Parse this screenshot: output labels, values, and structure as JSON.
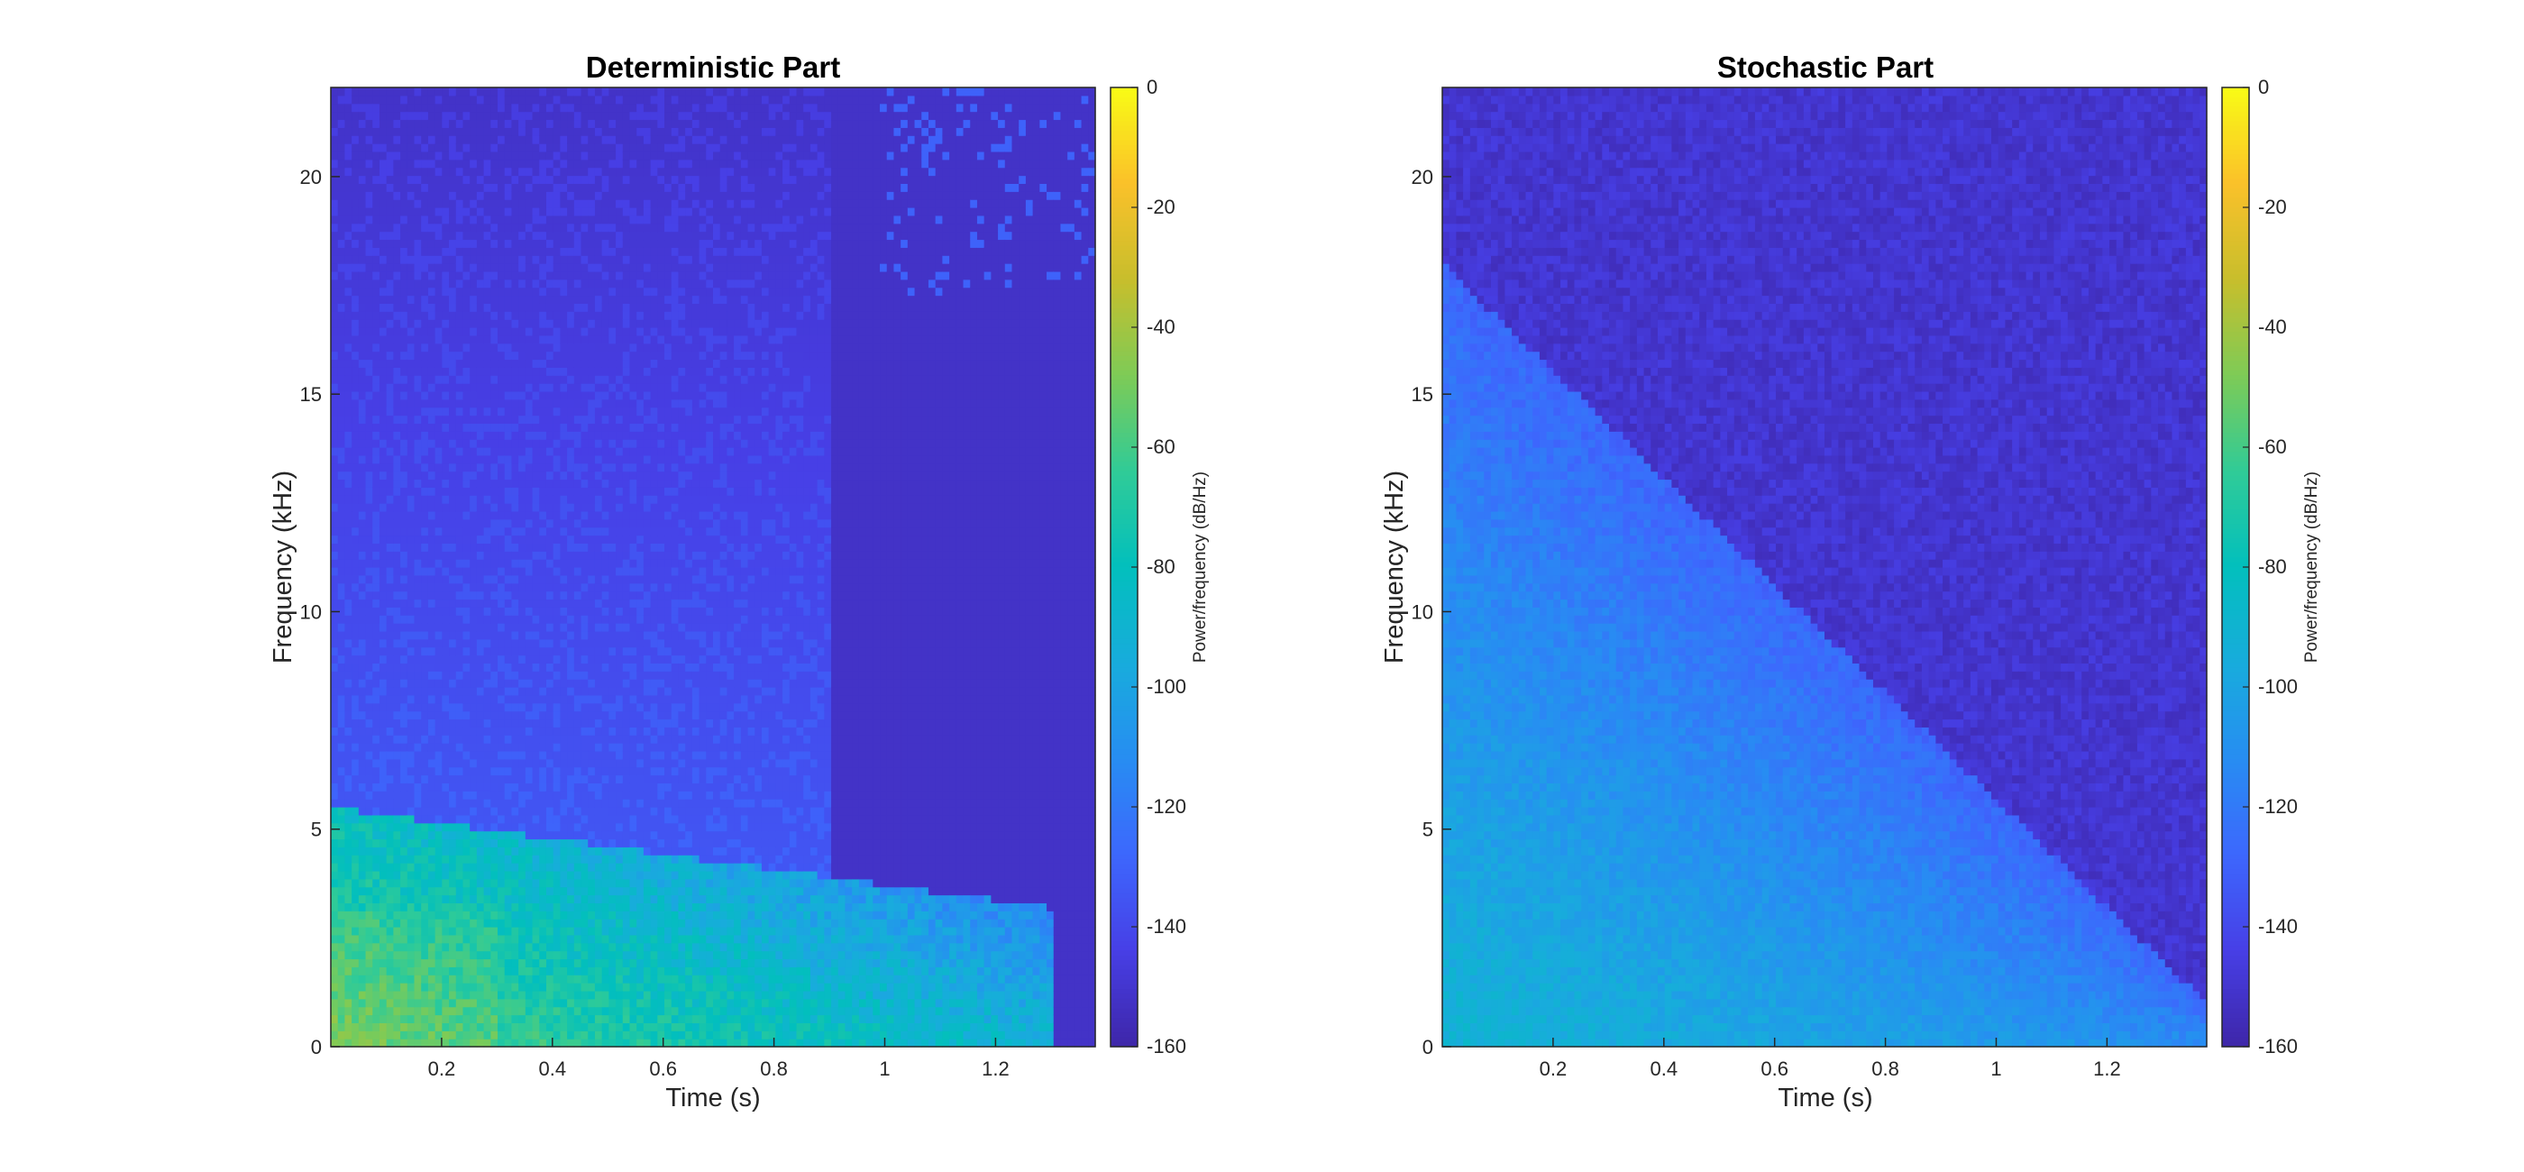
{
  "chart_data": [
    {
      "type": "heatmap",
      "title": "Deterministic Part",
      "xlabel": "Time (s)",
      "ylabel": "Frequency (kHz)",
      "xlim": [
        0.0,
        1.38
      ],
      "ylim": [
        0,
        22.05
      ],
      "x_ticks": [
        0.2,
        0.4,
        0.6,
        0.8,
        1,
        1.2
      ],
      "y_ticks": [
        0,
        5,
        10,
        15,
        20
      ],
      "colorbar": {
        "label": "Power/frequency (dB/Hz)",
        "range": [
          -160,
          0
        ],
        "ticks": [
          0,
          -20,
          -40,
          -60,
          -80,
          -100,
          -120,
          -140,
          -160
        ],
        "colormap": "parula"
      },
      "grid": false,
      "description_values": {
        "background_db": -152,
        "low_band_peak_db": -55,
        "low_band_top_khz_at_start": 5.5,
        "low_band_end_time_s": 1.3,
        "harmonic_band_top_khz": 3.2
      }
    },
    {
      "type": "heatmap",
      "title": "Stochastic Part",
      "xlabel": "Time (s)",
      "ylabel": "Frequency (kHz)",
      "xlim": [
        0.0,
        1.38
      ],
      "ylim": [
        0,
        22.05
      ],
      "x_ticks": [
        0.2,
        0.4,
        0.6,
        0.8,
        1,
        1.2
      ],
      "y_ticks": [
        0,
        5,
        10,
        15,
        20
      ],
      "colorbar": {
        "label": "Power/frequency (dB/Hz)",
        "range": [
          -160,
          0
        ],
        "ticks": [
          0,
          -20,
          -40,
          -60,
          -80,
          -100,
          -120,
          -140,
          -160
        ],
        "colormap": "parula"
      },
      "grid": false,
      "description_values": {
        "background_db": -150,
        "noise_peak_db": -85,
        "energy_front_khz_at_start": 18,
        "energy_front_khz_at_end": 1
      }
    }
  ]
}
